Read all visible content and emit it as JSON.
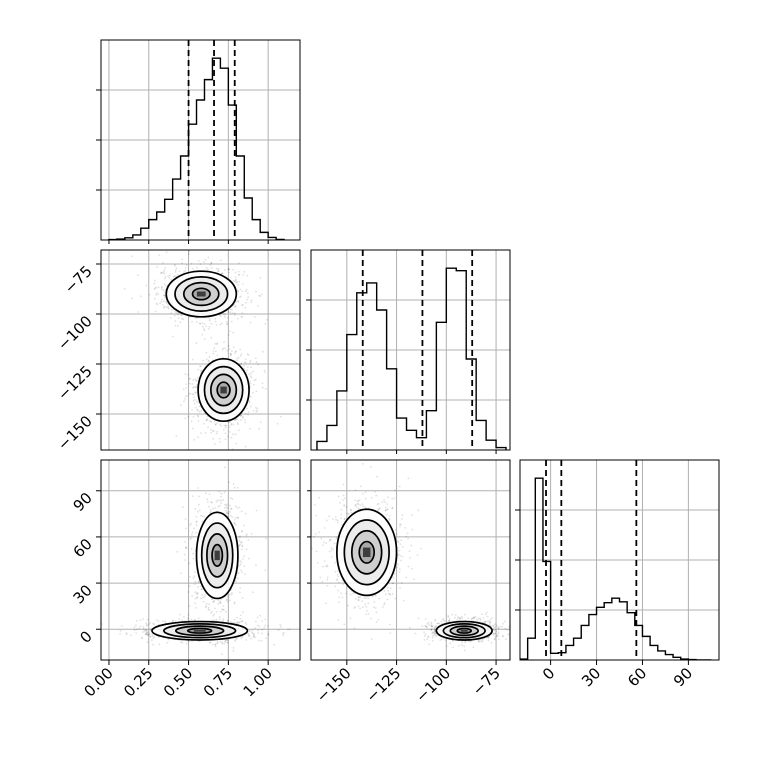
{
  "chart_data": {
    "type": "corner",
    "title": "",
    "grid": true,
    "parameters": [
      {
        "label": "",
        "range": [
          -0.05,
          1.2
        ],
        "ticks": [
          0.0,
          0.25,
          0.5,
          0.75,
          1.0
        ],
        "tick_labels": [
          "0.00",
          "0.25",
          "0.50",
          "0.75",
          "1.00"
        ]
      },
      {
        "label": "",
        "range": [
          -168,
          -68
        ],
        "ticks": [
          -150,
          -125,
          -100,
          -75
        ],
        "tick_labels": [
          "−150",
          "−125",
          "−100",
          "−75"
        ]
      },
      {
        "label": "",
        "range": [
          -20,
          110
        ],
        "ticks": [
          0,
          30,
          60,
          90
        ],
        "tick_labels": [
          "0",
          "30",
          "60",
          "90"
        ]
      }
    ],
    "histograms": [
      {
        "param": 0,
        "bin_edges": [
          0.0,
          0.05,
          0.1,
          0.15,
          0.2,
          0.25,
          0.3,
          0.35,
          0.4,
          0.45,
          0.5,
          0.55,
          0.6,
          0.65,
          0.7,
          0.75,
          0.8,
          0.85,
          0.9,
          0.95,
          1.0,
          1.05,
          1.1
        ],
        "counts": [
          0.2,
          0.5,
          1.2,
          2.8,
          6.5,
          11.2,
          15.4,
          22.4,
          33.5,
          46.2,
          63.7,
          77.0,
          88.2,
          100.0,
          94.5,
          74.2,
          46.2,
          23.1,
          11.2,
          4.2,
          1.4,
          0.3
        ],
        "quantiles": [
          0.5,
          0.66,
          0.79
        ]
      },
      {
        "param": 1,
        "bin_edges": [
          -165,
          -160,
          -155,
          -150,
          -145,
          -140,
          -135,
          -130,
          -125,
          -120,
          -115,
          -110,
          -105,
          -100,
          -95,
          -90,
          -85,
          -80,
          -75,
          -70
        ],
        "counts": [
          4.5,
          13.0,
          31.2,
          61.0,
          83.1,
          88.3,
          74.0,
          42.9,
          16.9,
          10.4,
          6.5,
          20.8,
          67.5,
          96.1,
          94.8,
          48.1,
          15.6,
          5.2,
          1.3
        ],
        "quantiles": [
          -142,
          -112,
          -87
        ]
      },
      {
        "param": 2,
        "bin_edges": [
          -20,
          -15,
          -10,
          -5,
          0,
          5,
          10,
          15,
          20,
          25,
          30,
          35,
          40,
          45,
          50,
          55,
          60,
          65,
          70,
          75,
          80,
          85,
          90,
          95,
          100,
          105
        ],
        "counts": [
          0.5,
          12.0,
          100.0,
          54.2,
          3.7,
          4.0,
          8.0,
          12.0,
          19.0,
          25.0,
          29.0,
          31.5,
          34.0,
          32.0,
          26.0,
          19.0,
          13.0,
          8.0,
          5.0,
          3.0,
          1.5,
          0.5,
          0.2,
          0.0,
          0.0
        ],
        "quantiles": [
          -3,
          7,
          56
        ]
      }
    ],
    "joint_modes": [
      {
        "x_param": 0,
        "y_param": 1,
        "modes": [
          {
            "mean": [
              0.58,
              -90.0
            ],
            "sd": [
              0.11,
              5.7
            ]
          },
          {
            "mean": [
              0.72,
              -138.0
            ],
            "sd": [
              0.08,
              7.8
            ]
          }
        ]
      },
      {
        "x_param": 0,
        "y_param": 2,
        "modes": [
          {
            "mean": [
              0.68,
              48.0
            ],
            "sd": [
              0.065,
              14.0
            ]
          },
          {
            "mean": [
              0.57,
              -1.0
            ],
            "sd": [
              0.15,
              3.0
            ]
          }
        ]
      },
      {
        "x_param": 1,
        "y_param": 2,
        "modes": [
          {
            "mean": [
              -140.0,
              50.0
            ],
            "sd": [
              7.5,
              14.0
            ]
          },
          {
            "mean": [
              -91.0,
              -1.0
            ],
            "sd": [
              7.0,
              3.0
            ]
          }
        ]
      }
    ],
    "contour_levels_sigma": [
      0.5,
      1.0,
      1.5,
      2.0
    ]
  }
}
